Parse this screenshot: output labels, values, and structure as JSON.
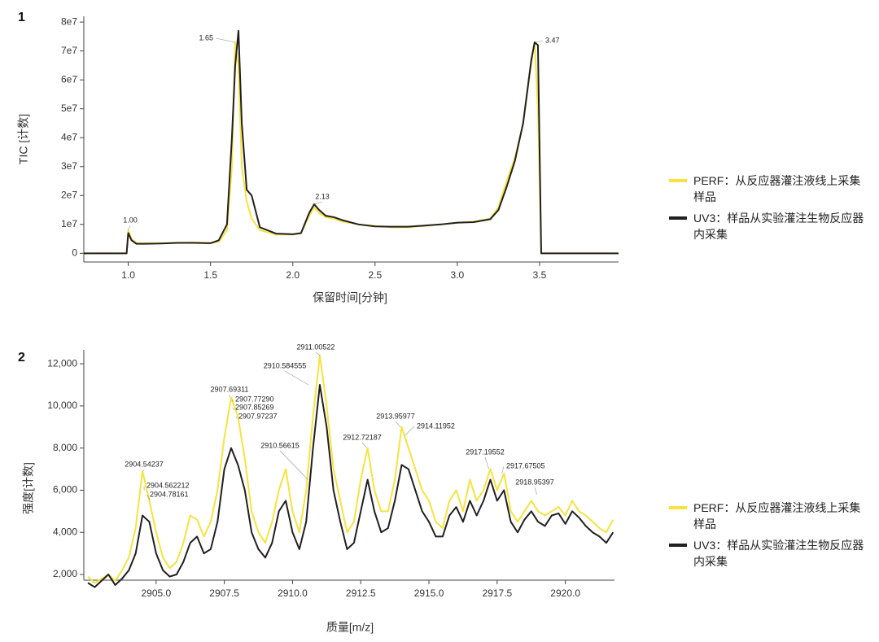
{
  "chart_data": [
    {
      "type": "line",
      "label": "1",
      "x_label": "保留时间[分钟]",
      "y_label": "TIC [计数]",
      "legend": "right",
      "xlim": [
        0.73,
        3.98
      ],
      "ylim": [
        -3000000,
        82000000
      ],
      "xticks": [
        {
          "value": 1,
          "label": "1.0"
        },
        1.5,
        {
          "value": 2,
          "label": "2.0"
        },
        2.5,
        {
          "value": 3,
          "label": "3.0"
        },
        3.5
      ],
      "yticks": [
        0,
        {
          "value": 10000000,
          "label": "1e7"
        },
        {
          "value": 20000000,
          "label": "2e7"
        },
        {
          "value": 30000000,
          "label": "3e7"
        },
        {
          "value": 40000000,
          "label": "4e7"
        },
        {
          "value": 50000000,
          "label": "5e7"
        },
        {
          "value": 60000000,
          "label": "6e7"
        },
        {
          "value": 70000000,
          "label": "7e7"
        },
        {
          "value": 80000000,
          "label": "8e7"
        }
      ],
      "x": [
        0.73,
        0.99,
        1.0,
        1.02,
        1.05,
        1.1,
        1.2,
        1.3,
        1.4,
        1.5,
        1.55,
        1.6,
        1.63,
        1.65,
        1.67,
        1.69,
        1.72,
        1.75,
        1.8,
        1.9,
        2.0,
        2.05,
        2.1,
        2.13,
        2.16,
        2.2,
        2.25,
        2.3,
        2.4,
        2.5,
        2.6,
        2.7,
        2.8,
        2.9,
        3.0,
        3.1,
        3.2,
        3.25,
        3.3,
        3.35,
        3.4,
        3.45,
        3.47,
        3.49,
        3.51,
        3.98
      ],
      "series": [
        {
          "name": "PERF：从反应器灌注液线上采集样品",
          "color": "#f6e33e",
          "values": [
            0,
            0,
            8000000,
            5000000,
            3500000,
            3500000,
            3500000,
            3700000,
            3800000,
            3600000,
            4000000,
            8000000,
            30000000,
            73000000,
            65000000,
            30000000,
            18000000,
            12000000,
            8000000,
            6500000,
            6500000,
            7000000,
            13000000,
            16000000,
            14000000,
            12500000,
            12000000,
            11000000,
            10000000,
            9500000,
            9000000,
            9000000,
            9500000,
            10000000,
            10500000,
            11000000,
            12000000,
            16000000,
            25000000,
            33000000,
            45000000,
            66000000,
            73000000,
            50000000,
            0,
            0
          ]
        },
        {
          "name": "UV3：样品从实验灌注生物反应器内采集",
          "color": "#231f20",
          "values": [
            0,
            0,
            7000000,
            4500000,
            3300000,
            3300000,
            3400000,
            3600000,
            3600000,
            3500000,
            4500000,
            10000000,
            40000000,
            65000000,
            77000000,
            45000000,
            22000000,
            20000000,
            9000000,
            6800000,
            6600000,
            7000000,
            14000000,
            17000000,
            15000000,
            13000000,
            12500000,
            11500000,
            10000000,
            9300000,
            9200000,
            9200000,
            9600000,
            10000000,
            10600000,
            10800000,
            11800000,
            15000000,
            23000000,
            32000000,
            45000000,
            67000000,
            73000000,
            72000000,
            0,
            0
          ]
        }
      ],
      "annotations": [
        {
          "text": "1.00",
          "x": 1.0,
          "y": 8000000
        },
        {
          "text": "1.65",
          "x": 1.65,
          "y": 73000000
        },
        {
          "text": "2.13",
          "x": 2.13,
          "y": 17000000
        },
        {
          "text": "3.47",
          "x": 3.47,
          "y": 73000000
        }
      ]
    },
    {
      "type": "line",
      "label": "2",
      "x_label": "质量[m/z]",
      "y_label": "强度[计数]",
      "legend": "right",
      "xlim": [
        2902.35,
        2921.8
      ],
      "ylim": [
        1730,
        12660
      ],
      "xticks": [
        {
          "value": 2905,
          "label": "2905.0"
        },
        2907.5,
        {
          "value": 2910,
          "label": "2910.0"
        },
        2912.5,
        {
          "value": 2915,
          "label": "2915.0"
        },
        2917.5,
        {
          "value": 2920,
          "label": "2920.0"
        }
      ],
      "yticks": [
        {
          "value": 2000,
          "label": "2,000"
        },
        {
          "value": 4000,
          "label": "4,000"
        },
        {
          "value": 6000,
          "label": "6,000"
        },
        {
          "value": 8000,
          "label": "8,000"
        },
        {
          "value": 10000,
          "label": "10,000"
        },
        {
          "value": 12000,
          "label": "12,000"
        }
      ],
      "x": [
        2902.5,
        2902.75,
        2903.0,
        2903.25,
        2903.5,
        2903.75,
        2904.0,
        2904.25,
        2904.5,
        2904.75,
        2905.0,
        2905.25,
        2905.5,
        2905.75,
        2906.0,
        2906.25,
        2906.5,
        2906.75,
        2907.0,
        2907.25,
        2907.5,
        2907.75,
        2908.0,
        2908.25,
        2908.5,
        2908.75,
        2909.0,
        2909.25,
        2909.5,
        2909.75,
        2910.0,
        2910.25,
        2910.5,
        2910.75,
        2911.0,
        2911.25,
        2911.5,
        2911.75,
        2912.0,
        2912.25,
        2912.5,
        2912.75,
        2913.0,
        2913.25,
        2913.5,
        2913.75,
        2914.0,
        2914.25,
        2914.5,
        2914.75,
        2915.0,
        2915.25,
        2915.5,
        2915.75,
        2916.0,
        2916.25,
        2916.5,
        2916.75,
        2917.0,
        2917.25,
        2917.5,
        2917.75,
        2918.0,
        2918.25,
        2918.5,
        2918.75,
        2919.0,
        2919.25,
        2919.5,
        2919.75,
        2920.0,
        2920.25,
        2920.5,
        2920.75,
        2921.0,
        2921.25,
        2921.5,
        2921.75
      ],
      "series": [
        {
          "name": "PERF：从反应器灌注液线上采集样品",
          "color": "#f6e33e",
          "values": [
            1900,
            1600,
            1800,
            2000,
            1700,
            2200,
            2800,
            4200,
            6900,
            5500,
            4000,
            2800,
            2300,
            2600,
            3500,
            4800,
            4600,
            3800,
            4500,
            6000,
            8500,
            10400,
            9500,
            7500,
            5000,
            4000,
            3500,
            4500,
            6000,
            7000,
            5000,
            4000,
            6000,
            9500,
            12400,
            10000,
            7000,
            5500,
            4000,
            4500,
            6500,
            8000,
            6000,
            5000,
            5000,
            6500,
            9000,
            8000,
            7000,
            6000,
            5500,
            4500,
            4200,
            5500,
            6000,
            5000,
            6500,
            5500,
            6000,
            7000,
            6000,
            6800,
            5000,
            4500,
            5000,
            5500,
            5000,
            4800,
            5000,
            5200,
            4800,
            5500,
            5000,
            4800,
            4500,
            4200,
            4000,
            4600
          ]
        },
        {
          "name": "UV3：样品从实验灌注生物反应器内采集",
          "color": "#231f20",
          "values": [
            1600,
            1400,
            1700,
            2000,
            1500,
            1800,
            2200,
            3000,
            4800,
            4500,
            3000,
            2200,
            1900,
            2000,
            2600,
            3500,
            3800,
            3000,
            3200,
            4500,
            7000,
            8000,
            7200,
            6000,
            4000,
            3200,
            2800,
            3500,
            5000,
            5500,
            4000,
            3200,
            4500,
            8000,
            11000,
            9000,
            6000,
            4500,
            3200,
            3500,
            5000,
            6500,
            5000,
            4000,
            4200,
            5500,
            7200,
            7000,
            6000,
            5000,
            4500,
            3800,
            3800,
            4800,
            5200,
            4500,
            5500,
            4800,
            5500,
            6500,
            5500,
            6000,
            4500,
            4000,
            4600,
            5000,
            4500,
            4300,
            4800,
            4900,
            4400,
            5000,
            4700,
            4300,
            4000,
            3800,
            3500,
            4000
          ]
        }
      ],
      "annotations": [
        {
          "text": "2904.54237",
          "x": 2904.54237,
          "y": 6900
        },
        {
          "text": "2904.562212",
          "x": 2904.562212,
          "y": 6000
        },
        {
          "text": "2904.78161",
          "x": 2904.78161,
          "y": 5500
        },
        {
          "text": "2907.69311",
          "x": 2907.69311,
          "y": 10400
        },
        {
          "text": "2907.77290",
          "x": 2907.7729,
          "y": 10200
        },
        {
          "text": "2907.85269",
          "x": 2907.85269,
          "y": 9800
        },
        {
          "text": "2907.97237",
          "x": 2907.97237,
          "y": 9400
        },
        {
          "text": "2910.584555",
          "x": 2910.584555,
          "y": 11000
        },
        {
          "text": "2911.00522",
          "x": 2911.00522,
          "y": 12400
        },
        {
          "text": "2910.56615",
          "x": 2910.56615,
          "y": 6500
        },
        {
          "text": "2912.72187",
          "x": 2912.72187,
          "y": 8000
        },
        {
          "text": "2913.95977",
          "x": 2913.95977,
          "y": 9000
        },
        {
          "text": "2914.11952",
          "x": 2914.11952,
          "y": 8600
        },
        {
          "text": "2917.19552",
          "x": 2917.19552,
          "y": 7000
        },
        {
          "text": "2917.67505",
          "x": 2917.67505,
          "y": 6800
        },
        {
          "text": "2918.95397",
          "x": 2918.95397,
          "y": 5800
        }
      ]
    }
  ]
}
